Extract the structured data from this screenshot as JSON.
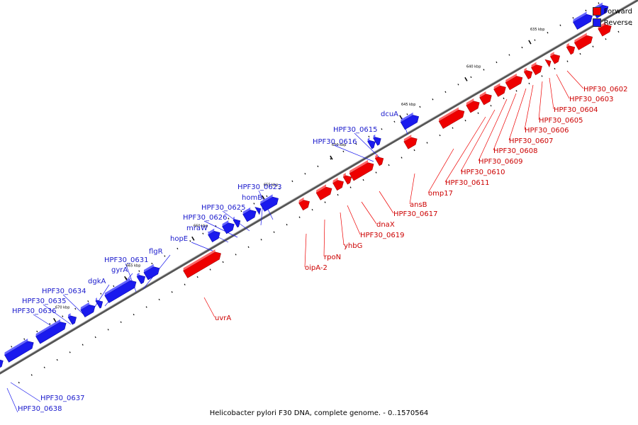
{
  "legend": {
    "forward_label": "Forward",
    "reverse_label": "Reverse",
    "forward_color": "#ee0000",
    "reverse_color": "#1a1aee"
  },
  "caption": "Helicobacter pylori F30 DNA, complete genome. - 0..1570564",
  "ticks": [
    "635 kbp",
    "640 kbp",
    "645 kbp",
    "650 kbp",
    "655 kbp",
    "660 kbp",
    "665 kbp",
    "670 kbp"
  ],
  "genes": {
    "forward": [
      "HPF30_0602",
      "HPF30_0603",
      "HPF30_0604",
      "HPF30_0605",
      "HPF30_0606",
      "HPF30_0607",
      "HPF30_0608",
      "HPF30_0609",
      "HPF30_0610",
      "HPF30_0611",
      "omp17",
      "ansB",
      "HPF30_0617",
      "dnaX",
      "HPF30_0619",
      "yhbG",
      "rpoN",
      "oipA-2",
      "uvrA"
    ],
    "reverse": [
      "dcuA",
      "HPF30_0615",
      "HPF30_0616",
      "HPF30_0623",
      "homB",
      "HPF30_0625",
      "HPF30_0626",
      "mraW",
      "hopE",
      "flgR",
      "HPF30_0631",
      "gyrA",
      "dgkA",
      "HPF30_0634",
      "HPF30_0635",
      "HPF30_0636",
      "HPF30_0637",
      "HPF30_0638"
    ]
  }
}
